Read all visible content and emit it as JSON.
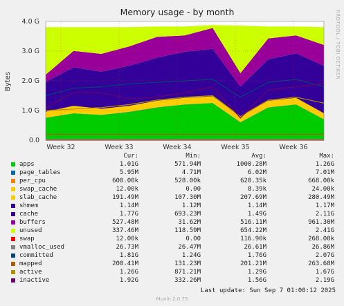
{
  "chart_data": {
    "type": "area",
    "title": "Memory usage - by month",
    "side_label": "RRDTOOL / TOBI OETIKER",
    "ylabel": "Bytes",
    "y_ticks": [
      "0.0",
      "1.0 G",
      "2.0 G",
      "3.0 G",
      "4.0 G"
    ],
    "x_ticks": [
      "Week 32",
      "Week 33",
      "Week 34",
      "Week 35",
      "Week 36"
    ],
    "ylim": [
      0,
      4000000000
    ],
    "grid": true,
    "legend_headers": [
      "Cur:",
      "Min:",
      "Avg:",
      "Max:"
    ],
    "last_update": "Last update: Sun Sep  7 01:00:12 2025",
    "footer": "Munin 2.0.75",
    "stack_keypoints_fraction": [
      0,
      0.1,
      0.2,
      0.3,
      0.4,
      0.5,
      0.6,
      0.7,
      0.8,
      0.9,
      1.0
    ],
    "stack_total_gb": [
      3.8,
      3.8,
      3.8,
      3.8,
      3.8,
      3.8,
      3.8,
      3.8,
      3.8,
      3.8,
      3.8
    ],
    "series": [
      {
        "name": "apps",
        "color": "#00cc00",
        "cur": "1.01G",
        "min": "571.94M",
        "avg": "1000.28M",
        "max": "1.26G",
        "approx_gb": [
          0.75,
          0.9,
          0.85,
          0.95,
          1.1,
          1.2,
          1.25,
          0.6,
          1.1,
          1.2,
          0.7
        ]
      },
      {
        "name": "page_tables",
        "color": "#0066b3",
        "cur": "5.95M",
        "min": "4.71M",
        "avg": "6.02M",
        "max": "7.01M",
        "approx_gb": [
          0.006,
          0.006,
          0.006,
          0.006,
          0.006,
          0.006,
          0.006,
          0.006,
          0.006,
          0.006,
          0.006
        ]
      },
      {
        "name": "per_cpu",
        "color": "#ff8000",
        "cur": "600.00k",
        "min": "528.00k",
        "avg": "620.35k",
        "max": "668.00k",
        "approx_gb": [
          0.001,
          0.001,
          0.001,
          0.001,
          0.001,
          0.001,
          0.001,
          0.001,
          0.001,
          0.001,
          0.001
        ]
      },
      {
        "name": "swap_cache",
        "color": "#ffcc00",
        "cur": "12.00k",
        "min": "0.00",
        "avg": "8.39k",
        "max": "24.00k",
        "approx_gb": [
          0.0,
          0.0,
          0.0,
          0.0,
          0.0,
          0.0,
          0.0,
          0.0,
          0.0,
          0.0,
          0.0
        ]
      },
      {
        "name": "slab_cache",
        "color": "#ffcc00",
        "cur": "191.49M",
        "min": "107.30M",
        "avg": "207.69M",
        "max": "280.49M",
        "approx_gb": [
          0.2,
          0.25,
          0.2,
          0.2,
          0.22,
          0.22,
          0.22,
          0.2,
          0.22,
          0.22,
          0.2
        ]
      },
      {
        "name": "shmem",
        "color": "#330099",
        "cur": "1.14M",
        "min": "1.12M",
        "avg": "1.14M",
        "max": "1.17M",
        "approx_gb": [
          0.001,
          0.001,
          0.001,
          0.001,
          0.001,
          0.001,
          0.001,
          0.001,
          0.001,
          0.001,
          0.001
        ]
      },
      {
        "name": "cache",
        "color": "#330099",
        "cur": "1.77G",
        "min": "693.23M",
        "avg": "1.49G",
        "max": "2.11G",
        "approx_gb": [
          1.0,
          1.3,
          1.25,
          1.35,
          1.45,
          1.55,
          1.6,
          1.0,
          1.4,
          1.5,
          1.6
        ]
      },
      {
        "name": "buffers",
        "color": "#990099",
        "cur": "527.48M",
        "min": "31.62M",
        "avg": "516.11M",
        "max": "961.30M",
        "approx_gb": [
          0.25,
          0.55,
          0.6,
          0.65,
          0.7,
          0.55,
          0.7,
          0.45,
          0.7,
          0.6,
          0.7
        ]
      },
      {
        "name": "unused",
        "color": "#ccff00",
        "cur": "337.46M",
        "min": "118.59M",
        "avg": "654.22M",
        "max": "2.41G",
        "approx_gb": [
          1.6,
          0.8,
          0.9,
          0.65,
          0.35,
          0.3,
          0.1,
          1.6,
          0.4,
          0.3,
          0.6
        ]
      },
      {
        "name": "swap",
        "color": "#ff0000",
        "cur": "12.00k",
        "min": "0.00",
        "avg": "116.90k",
        "max": "268.00k"
      },
      {
        "name": "vmalloc_used",
        "color": "#808080",
        "cur": "26.73M",
        "min": "26.47M",
        "avg": "26.61M",
        "max": "26.86M"
      },
      {
        "name": "committed",
        "color": "#00457a",
        "cur": "1.81G",
        "min": "1.24G",
        "avg": "1.76G",
        "max": "2.07G"
      },
      {
        "name": "mapped",
        "color": "#b3590e",
        "cur": "200.41M",
        "min": "131.23M",
        "avg": "201.21M",
        "max": "263.68M"
      },
      {
        "name": "active",
        "color": "#b38f00",
        "cur": "1.26G",
        "min": "871.21M",
        "avg": "1.29G",
        "max": "1.67G"
      },
      {
        "name": "inactive",
        "color": "#6b006b",
        "cur": "1.92G",
        "min": "332.26M",
        "avg": "1.56G",
        "max": "2.19G"
      }
    ]
  }
}
